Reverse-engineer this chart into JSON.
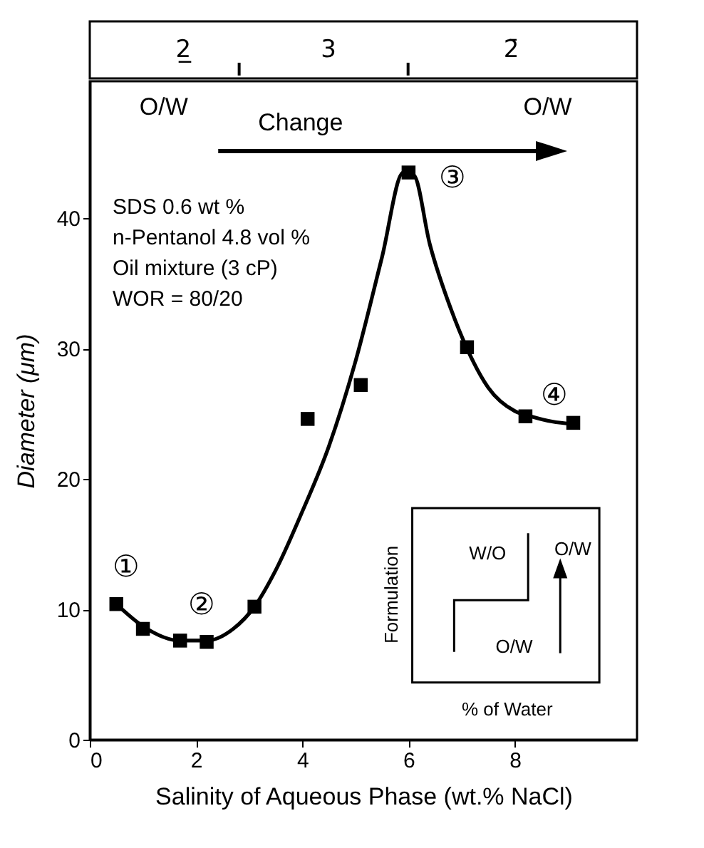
{
  "chart_data": {
    "type": "scatter",
    "xlabel": "Salinity of Aqueous Phase (wt.% NaCl)",
    "ylabel": "Diameter (μm)",
    "xlim": [
      0,
      10.3
    ],
    "xticks": [
      0,
      2,
      4,
      6,
      8
    ],
    "ylim": [
      0,
      50.5
    ],
    "yticks": [
      0,
      10,
      20,
      30,
      40
    ],
    "marker": "square",
    "series": [
      {
        "color": "#000000",
        "x": [
          0.5,
          1.0,
          1.7,
          2.2,
          3.1,
          4.1,
          5.1,
          6.0,
          7.1,
          8.2,
          9.1
        ],
        "values": [
          10.4,
          8.5,
          7.6,
          7.5,
          10.2,
          24.6,
          27.2,
          43.5,
          30.1,
          24.8,
          24.3
        ]
      },
      {
        "type": "line",
        "marker": "none",
        "color": "#000000",
        "x": [
          0.5,
          1.0,
          1.7,
          2.2,
          2.7,
          3.1,
          3.5,
          4.0,
          4.5,
          5.0,
          5.5,
          5.9,
          6.1,
          6.4,
          6.8,
          7.1,
          7.5,
          8.0,
          8.3,
          8.7,
          9.1
        ],
        "values": [
          10.4,
          8.7,
          7.6,
          7.6,
          8.5,
          10.2,
          13.0,
          17.5,
          22.5,
          29.0,
          37.0,
          43.5,
          43.3,
          38.0,
          33.0,
          30.0,
          27.0,
          25.2,
          24.8,
          24.4,
          24.2
        ]
      }
    ],
    "annotations": [
      "SDS 0.6 wt %",
      "n-Pentanol  4.8 vol %",
      "Oil mixture (3 cP)",
      "WOR = 80/20",
      "W/O",
      "O/W",
      "O/W",
      "Formulation",
      "% of Water",
      "2̲",
      "3",
      "2̄",
      "O/W",
      "Change",
      "O/W",
      "①",
      "②",
      "③",
      "④"
    ]
  }
}
